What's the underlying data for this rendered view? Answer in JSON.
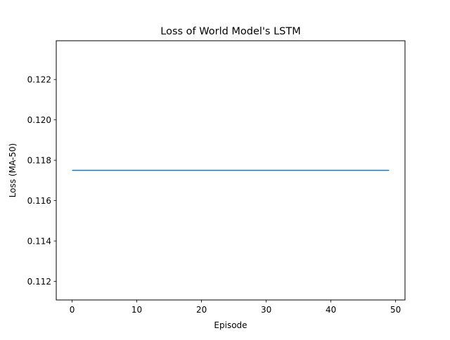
{
  "chart_data": {
    "type": "line",
    "title": "Loss of World Model's LSTM",
    "xlabel": "Episode",
    "ylabel": "Loss (MA-50)",
    "xlim": [
      -2.45,
      51.45
    ],
    "ylim": [
      0.11108,
      0.12392
    ],
    "xticks": [
      0,
      10,
      20,
      30,
      40,
      50
    ],
    "xtick_labels": [
      "0",
      "10",
      "20",
      "30",
      "40",
      "50"
    ],
    "yticks": [
      0.112,
      0.114,
      0.116,
      0.118,
      0.12,
      0.122
    ],
    "ytick_labels": [
      "0.112",
      "0.114",
      "0.116",
      "0.118",
      "0.120",
      "0.122"
    ],
    "grid": false,
    "series": [
      {
        "name": "loss",
        "color": "#1f77b4",
        "x": [
          0,
          49
        ],
        "y": [
          0.1175,
          0.1175
        ]
      }
    ]
  }
}
